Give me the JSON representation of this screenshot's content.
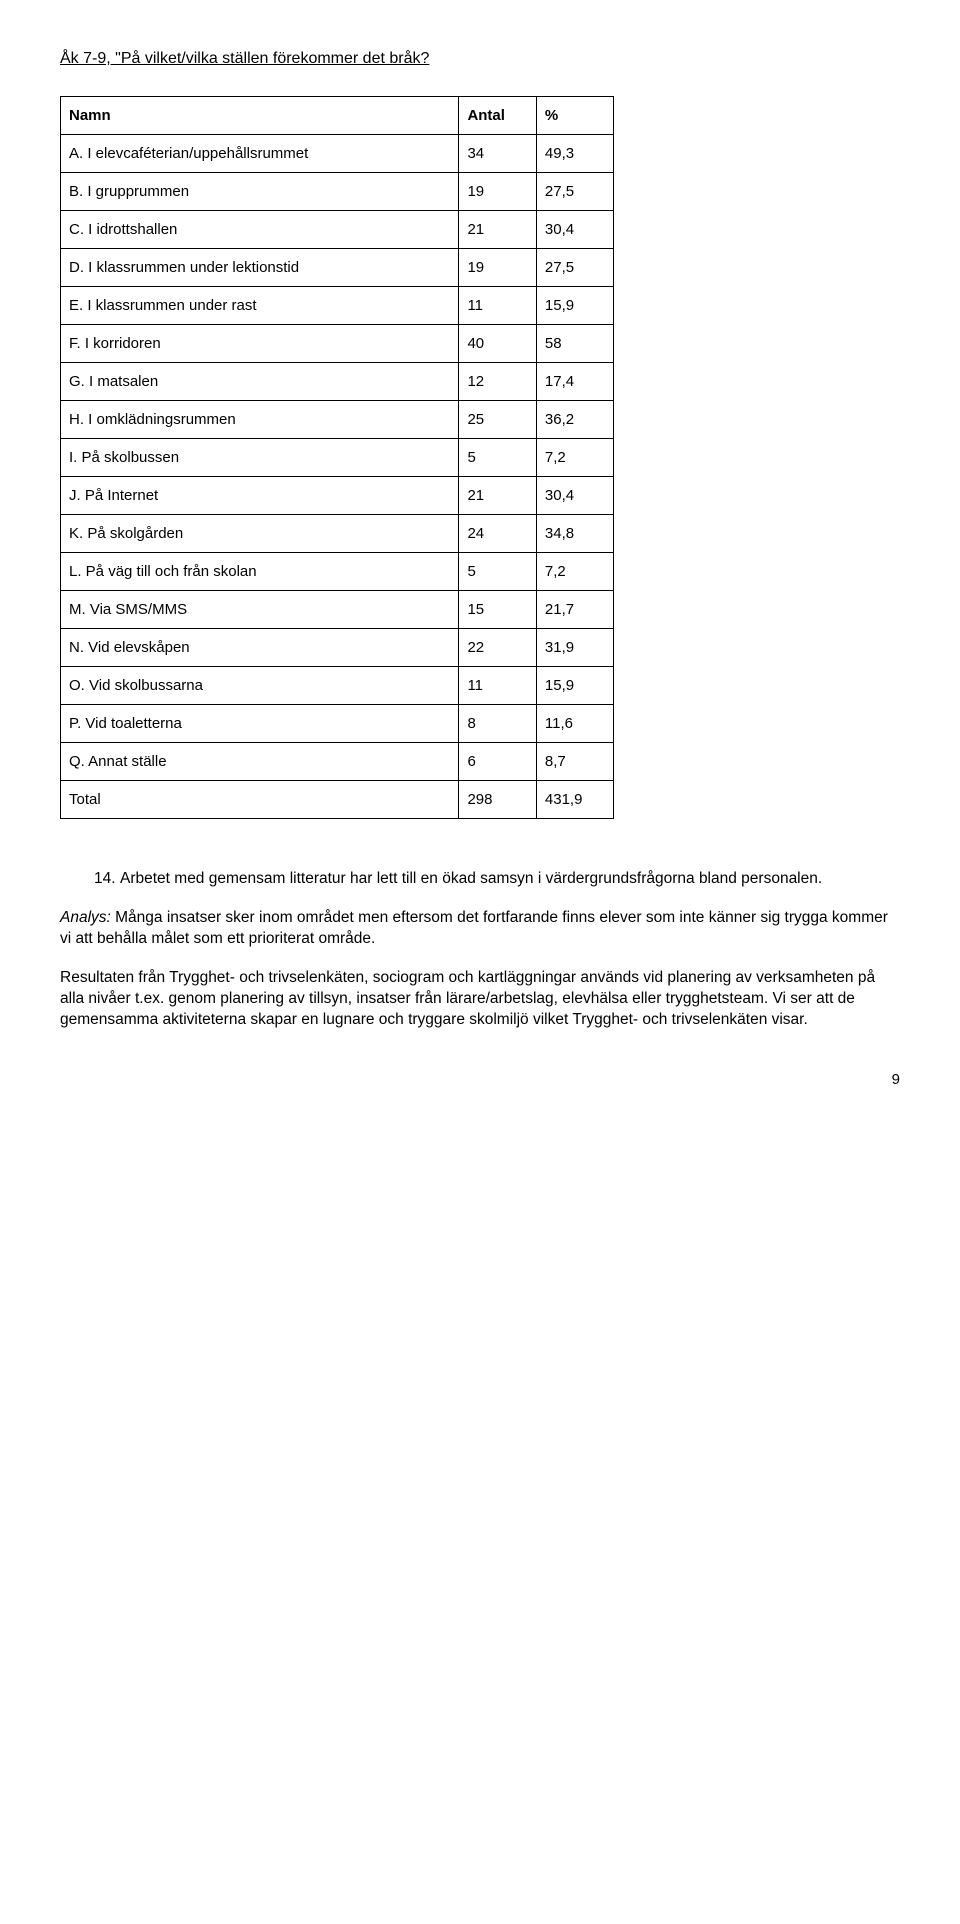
{
  "heading": "Åk 7-9, \"På vilket/vilka ställen förekommer det bråk?",
  "table": {
    "columns": [
      "Namn",
      "Antal",
      "%"
    ],
    "rows": [
      [
        "A. I elevcaféterian/uppehållsrummet",
        "34",
        "49,3"
      ],
      [
        "B. I grupprummen",
        "19",
        "27,5"
      ],
      [
        "C. I idrottshallen",
        "21",
        "30,4"
      ],
      [
        "D. I klassrummen under lektionstid",
        "19",
        "27,5"
      ],
      [
        "E. I klassrummen under rast",
        "11",
        "15,9"
      ],
      [
        "F. I korridoren",
        "40",
        "58"
      ],
      [
        "G. I matsalen",
        "12",
        "17,4"
      ],
      [
        "H. I omklädningsrummen",
        "25",
        "36,2"
      ],
      [
        "I. På skolbussen",
        "5",
        "7,2"
      ],
      [
        "J. På Internet",
        "21",
        "30,4"
      ],
      [
        "K. På skolgården",
        "24",
        "34,8"
      ],
      [
        "L. På väg till och från skolan",
        "5",
        "7,2"
      ],
      [
        "M. Via SMS/MMS",
        "15",
        "21,7"
      ],
      [
        "N. Vid elevskåpen",
        "22",
        "31,9"
      ],
      [
        "O. Vid skolbussarna",
        "11",
        "15,9"
      ],
      [
        "P. Vid toaletterna",
        "8",
        "11,6"
      ],
      [
        "Q. Annat ställe",
        "6",
        "8,7"
      ],
      [
        "Total",
        "298",
        "431,9"
      ]
    ]
  },
  "list_item_num": "14.",
  "list_item_text": "Arbetet med gemensam litteratur har lett till en ökad samsyn i värdergrundsfrågorna bland personalen.",
  "para1_prefix": "Analys:",
  "para1_rest": " Många insatser sker inom området men eftersom det fortfarande finns elever som inte känner sig trygga kommer vi att behålla målet som ett prioriterat område.",
  "para2": "Resultaten från Trygghet- och trivselenkäten, sociogram och kartläggningar används vid planering av verksamheten på alla nivåer t.ex. genom planering av tillsyn, insatser från lärare/arbetslag, elevhälsa eller trygghetsteam. Vi ser att de gemensamma aktiviteterna skapar en lugnare och tryggare skolmiljö vilket Trygghet- och trivselenkäten visar.",
  "page_number": "9"
}
